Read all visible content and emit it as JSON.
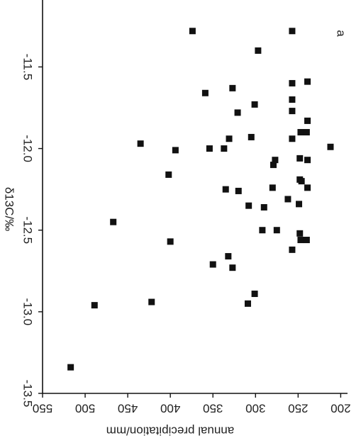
{
  "chart_data": {
    "type": "scatter",
    "x_label": "annual precipitation/mm",
    "y_label": "δ13C/‰",
    "panel_label": "a",
    "color": "#111111",
    "xlim": [
      550,
      192
    ],
    "ylim": [
      -13.5,
      -11.09
    ],
    "xticks": [
      550,
      500,
      450,
      400,
      350,
      300,
      250,
      200
    ],
    "yticks": [
      -13.5,
      {
        "value": -13,
        "label": "-13.0"
      },
      -12.5,
      {
        "value": -12,
        "label": "-12.0"
      },
      -11.5
    ],
    "x": [
      517,
      489,
      467,
      435,
      422,
      400,
      402,
      394,
      374,
      359,
      354,
      350,
      335,
      337,
      332,
      331,
      327,
      327,
      320,
      321,
      308,
      305,
      301,
      301,
      309,
      297,
      292,
      290,
      280,
      279,
      277,
      275,
      262,
      257,
      257,
      257,
      257,
      257,
      257,
      248,
      247,
      249,
      248,
      248,
      247,
      246,
      239,
      240,
      239,
      240,
      239,
      239,
      212
    ],
    "y": [
      -13.34,
      -12.96,
      -12.45,
      -11.97,
      -12.94,
      -12.57,
      -12.16,
      -12.01,
      -11.28,
      -11.66,
      -12.0,
      -12.71,
      -12.25,
      -12.0,
      -12.66,
      -11.94,
      -12.73,
      -11.63,
      -12.26,
      -11.78,
      -12.35,
      -11.93,
      -11.73,
      -12.89,
      -12.95,
      -11.4,
      -12.5,
      -12.36,
      -12.24,
      -12.1,
      -12.07,
      -12.5,
      -12.31,
      -12.62,
      -11.28,
      -11.6,
      -11.7,
      -11.77,
      -11.94,
      -12.52,
      -12.56,
      -12.34,
      -12.19,
      -12.06,
      -11.9,
      -12.2,
      -12.07,
      -11.9,
      -12.24,
      -12.56,
      -11.59,
      -11.83,
      -11.99
    ]
  }
}
